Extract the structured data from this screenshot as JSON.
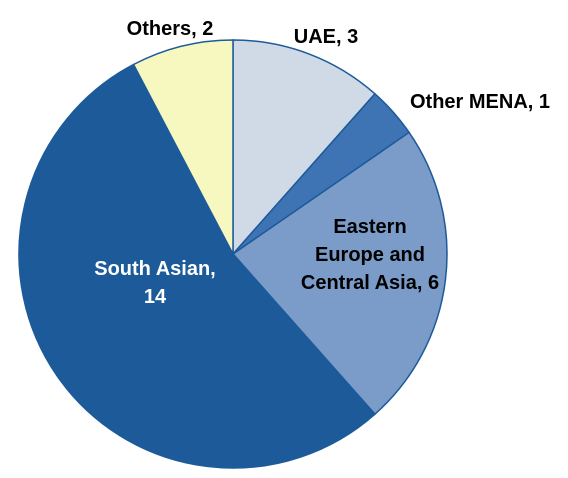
{
  "chart_data": {
    "type": "pie",
    "values": [
      3,
      1,
      6,
      14,
      2
    ],
    "value_labels": [
      "UAE, 3",
      "Other MENA, 1",
      "Eastern\nEurope and\nCentral Asia, 6",
      "South Asian,\n14",
      "Others, 2"
    ],
    "colors": [
      "#d0d9e6",
      "#3f74b4",
      "#7b9cc8",
      "#1c5a9a",
      "#f7f7c0"
    ]
  }
}
